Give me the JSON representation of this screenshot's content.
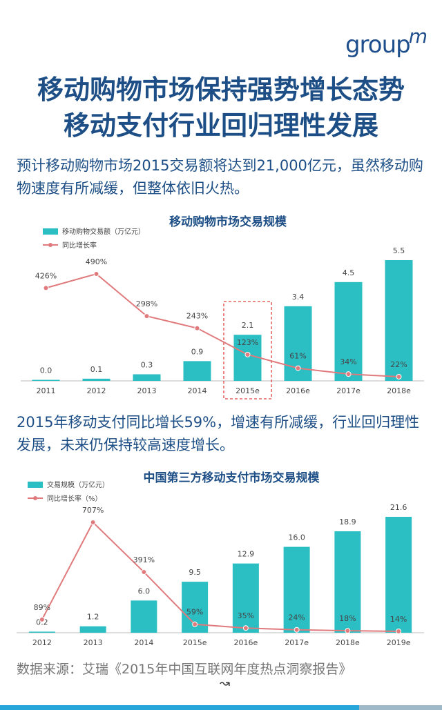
{
  "brand": {
    "logo_main": "group",
    "logo_sup": "m"
  },
  "headline": {
    "line1": "移动购物市场保持强势增长态势",
    "line2": "移动支付行业回归理性发展"
  },
  "para1": "预计移动购物市场2015交易额将达到21,000亿元，虽然移动购物速度有所减缓，但整体依旧火热。",
  "para2": "2015年移动支付同比增长59%，增速有所减缓，行业回归理性发展，未来仍保持较高速度增长。",
  "source": "数据来源：艾瑞《2015年中国互联网年度热点洞察报告》",
  "colors": {
    "bar": "#2bbfc4",
    "line": "#e07a7c",
    "title": "#1d4f86",
    "highlight": "#e04040"
  },
  "chart_data": [
    {
      "type": "bar",
      "title": "移动购物市场交易规模",
      "categories": [
        "2011",
        "2012",
        "2013",
        "2014",
        "2015e",
        "2016e",
        "2017e",
        "2018e"
      ],
      "series": [
        {
          "name": "移动购物交易额（万亿元）",
          "type": "bar",
          "values": [
            0.0,
            0.1,
            0.3,
            0.9,
            2.1,
            3.4,
            4.5,
            5.5
          ],
          "labels": [
            "0.0",
            "0.1",
            "0.3",
            "0.9",
            "2.1",
            "3.4",
            "4.5",
            "5.5"
          ]
        },
        {
          "name": "同比增长率",
          "type": "line",
          "values": [
            426,
            490,
            298,
            243,
            123,
            61,
            34,
            22
          ],
          "labels": [
            "426%",
            "490%",
            "298%",
            "243%",
            "123%",
            "61%",
            "34%",
            "22%"
          ]
        }
      ],
      "highlight_category": "2015e",
      "legend_position": "top-left",
      "grid": false
    },
    {
      "type": "bar",
      "title": "中国第三方移动支付市场交易规模",
      "categories": [
        "2012",
        "2013",
        "2014",
        "2015e",
        "2016e",
        "2017e",
        "2018e",
        "2019e"
      ],
      "series": [
        {
          "name": "交易规模（万亿元）",
          "type": "bar",
          "values": [
            0.2,
            1.2,
            6.0,
            9.5,
            12.9,
            16.0,
            18.9,
            21.6
          ],
          "labels": [
            "0.2",
            "1.2",
            "6.0",
            "9.5",
            "12.9",
            "16.0",
            "18.9",
            "21.6"
          ]
        },
        {
          "name": "同比增长率（%）",
          "type": "line",
          "values": [
            89,
            707,
            391,
            59,
            35,
            24,
            18,
            14
          ],
          "labels": [
            "89%",
            "707%",
            "391%",
            "59%",
            "35%",
            "24%",
            "18%",
            "14%"
          ]
        }
      ],
      "legend_position": "top-left",
      "grid": false
    }
  ]
}
